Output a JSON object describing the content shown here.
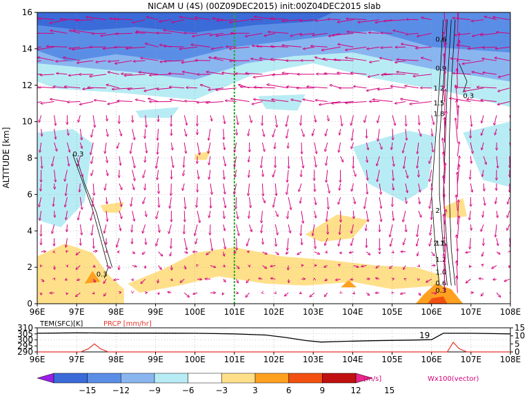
{
  "chart_data": [
    {
      "type": "heatmap",
      "title": "NICAM U (4S) (00Z09DEC2015) init:00Z04DEC2015 slab",
      "ylabel": "ALTITUDE [km]",
      "x_ticks": [
        "96E",
        "97E",
        "98E",
        "99E",
        "100E",
        "101E",
        "102E",
        "103E",
        "104E",
        "105E",
        "106E",
        "107E",
        "108E"
      ],
      "y_ticks": [
        "0",
        "2",
        "4",
        "6",
        "8",
        "10",
        "12",
        "14",
        "16"
      ],
      "xlim": [
        96,
        108
      ],
      "ylim": [
        0,
        16
      ],
      "grid": true,
      "marker_line_lon": 101,
      "vector_label": "Wx100(vector)",
      "contour_labels": [
        "0.3",
        "0.3",
        "0.6",
        "0.9",
        "1.2",
        "1.5",
        "1.8",
        "2",
        "2.1",
        "0.3",
        "1.5",
        "1.2",
        "1.0",
        "0.6",
        "0.3"
      ],
      "colorbar": {
        "ticks": [
          "−15",
          "−12",
          "−9",
          "−6",
          "−3",
          "3",
          "6",
          "9",
          "12",
          "15"
        ],
        "unit": "[m/s]",
        "colors": [
          "#9a1ee8",
          "#3a6bd8",
          "#5a8ee6",
          "#8ab6f0",
          "#b8ecf4",
          "#ffffff",
          "#ffe08a",
          "#ffa020",
          "#f25010",
          "#c01010",
          "#e8288a"
        ]
      }
    },
    {
      "type": "line",
      "xlim": [
        96,
        108
      ],
      "x_ticks": [
        "96E",
        "97E",
        "98E",
        "99E",
        "100E",
        "101E",
        "102E",
        "103E",
        "104E",
        "105E",
        "106E",
        "107E",
        "108E"
      ],
      "series": [
        {
          "name": "TEM(SFC)[K]",
          "color": "#000000",
          "x": [
            96.0,
            97.0,
            98.0,
            99.0,
            100.0,
            101.0,
            101.8,
            102.3,
            102.8,
            103.2,
            103.8,
            104.5,
            105.5,
            106.0,
            106.3,
            107.0,
            108.0
          ],
          "y": [
            305.5,
            305.8,
            305.6,
            305.6,
            305.5,
            305.0,
            304.0,
            302.0,
            299.5,
            298.2,
            298.8,
            299.3,
            299.8,
            300.2,
            305.5,
            305.5,
            305.0
          ]
        },
        {
          "name": "PRCP [mm/hr]",
          "color": "#e8322a",
          "x": [
            96.0,
            97.1,
            97.3,
            97.45,
            97.6,
            97.8,
            106.2,
            106.4,
            106.55,
            106.7,
            106.9,
            108.0
          ],
          "y": [
            0,
            0,
            2,
            5,
            2,
            0,
            0,
            0,
            6,
            2,
            0,
            0
          ]
        }
      ],
      "y_left_ticks": [
        "310",
        "305",
        "300",
        "295",
        "290"
      ],
      "y_left_lim": [
        290,
        310
      ],
      "y_right_ticks": [
        "15",
        "10",
        "5",
        "0"
      ],
      "y_right_lim": [
        0,
        15
      ],
      "inline_label": "19"
    }
  ]
}
